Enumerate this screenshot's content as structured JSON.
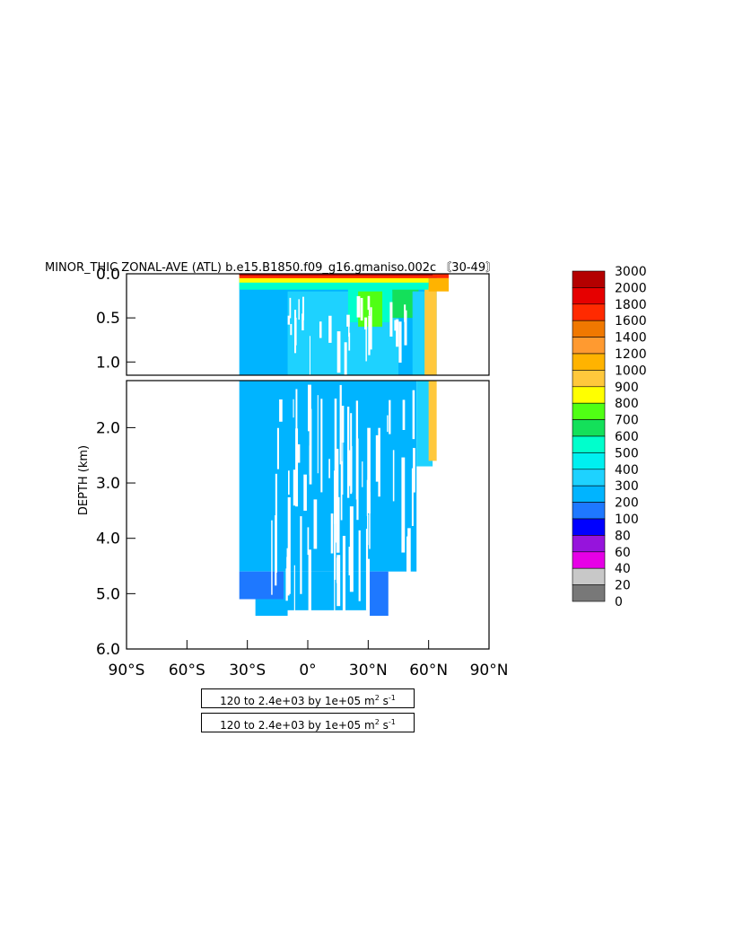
{
  "chart_data": {
    "type": "heatmap",
    "title": "MINOR_THIC ZONAL-AVE (ATL) b.e15.B1850.f09_g16.gmaniso.002c 〘30-49〙",
    "ylabel": "DEPTH (km)",
    "xlabel": "",
    "xlim": [
      -90,
      90
    ],
    "x_ticks": [
      "90°S",
      "60°S",
      "30°S",
      "0°",
      "30°N",
      "60°N",
      "90°N"
    ],
    "x_tick_values": [
      -90,
      -60,
      -30,
      0,
      30,
      60,
      90
    ],
    "panels": [
      {
        "name": "upper",
        "ylim": [
          0.0,
          1.15
        ],
        "y_ticks": [
          "0.0",
          "0.5",
          "1.0"
        ],
        "y_tick_values": [
          0.0,
          0.5,
          1.0
        ]
      },
      {
        "name": "lower",
        "ylim": [
          1.15,
          6.0
        ],
        "y_ticks": [
          "2.0",
          "3.0",
          "4.0",
          "5.0",
          "6.0"
        ],
        "y_tick_values": [
          2.0,
          3.0,
          4.0,
          5.0,
          6.0
        ]
      }
    ],
    "colorbar": {
      "levels": [
        "3000",
        "2000",
        "1800",
        "1600",
        "1400",
        "1200",
        "1000",
        "900",
        "800",
        "700",
        "600",
        "500",
        "400",
        "300",
        "200",
        "100",
        "80",
        "60",
        "40",
        "20",
        "0"
      ],
      "colors": [
        "#b40000",
        "#e60000",
        "#ff2a00",
        "#f07800",
        "#ff9a30",
        "#ffb300",
        "#ffc83c",
        "#ffff00",
        "#50ff14",
        "#14e05a",
        "#00ffcc",
        "#00f0f0",
        "#1ed2ff",
        "#00b4ff",
        "#1e78ff",
        "#0000ff",
        "#9614dc",
        "#e600e6",
        "#c8c8c8",
        "#787878"
      ]
    },
    "data_extent": {
      "lat_min": -34,
      "lat_max": 70,
      "depth_max": 5.4,
      "grid": "grid on"
    }
  },
  "legend_boxes": [
    {
      "prefix": "120 to 2.4e+03 by 1e+05 m",
      "sup1": "2",
      "mid": " s",
      "sup2": "-1"
    },
    {
      "prefix": "120 to 2.4e+03 by 1e+05 m",
      "sup1": "2",
      "mid": " s",
      "sup2": "-1"
    }
  ]
}
